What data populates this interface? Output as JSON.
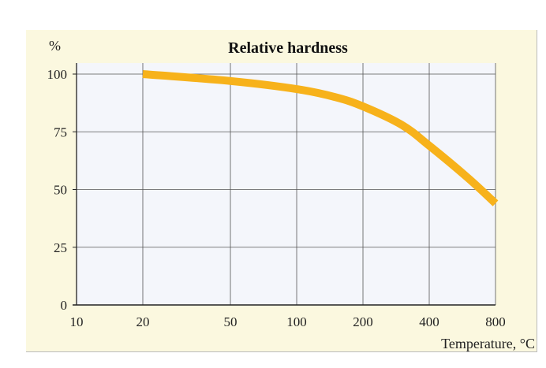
{
  "chart_data": {
    "type": "line",
    "title": "Relative hardness",
    "ylabel": "%",
    "xlabel": "Temperature, °C",
    "xscale": "log",
    "xlim": [
      10,
      800
    ],
    "ylim": [
      0,
      100
    ],
    "xticks": [
      10,
      20,
      50,
      100,
      200,
      400,
      800
    ],
    "yticks": [
      0,
      25,
      50,
      75,
      100
    ],
    "grid": true,
    "series": [
      {
        "name": "Relative hardness",
        "color": "#f7b21b",
        "x": [
          20,
          50,
          100,
          150,
          200,
          300,
          400,
          600,
          800
        ],
        "y": [
          100,
          97,
          93.5,
          90,
          86,
          78,
          69,
          55,
          44
        ]
      }
    ]
  }
}
